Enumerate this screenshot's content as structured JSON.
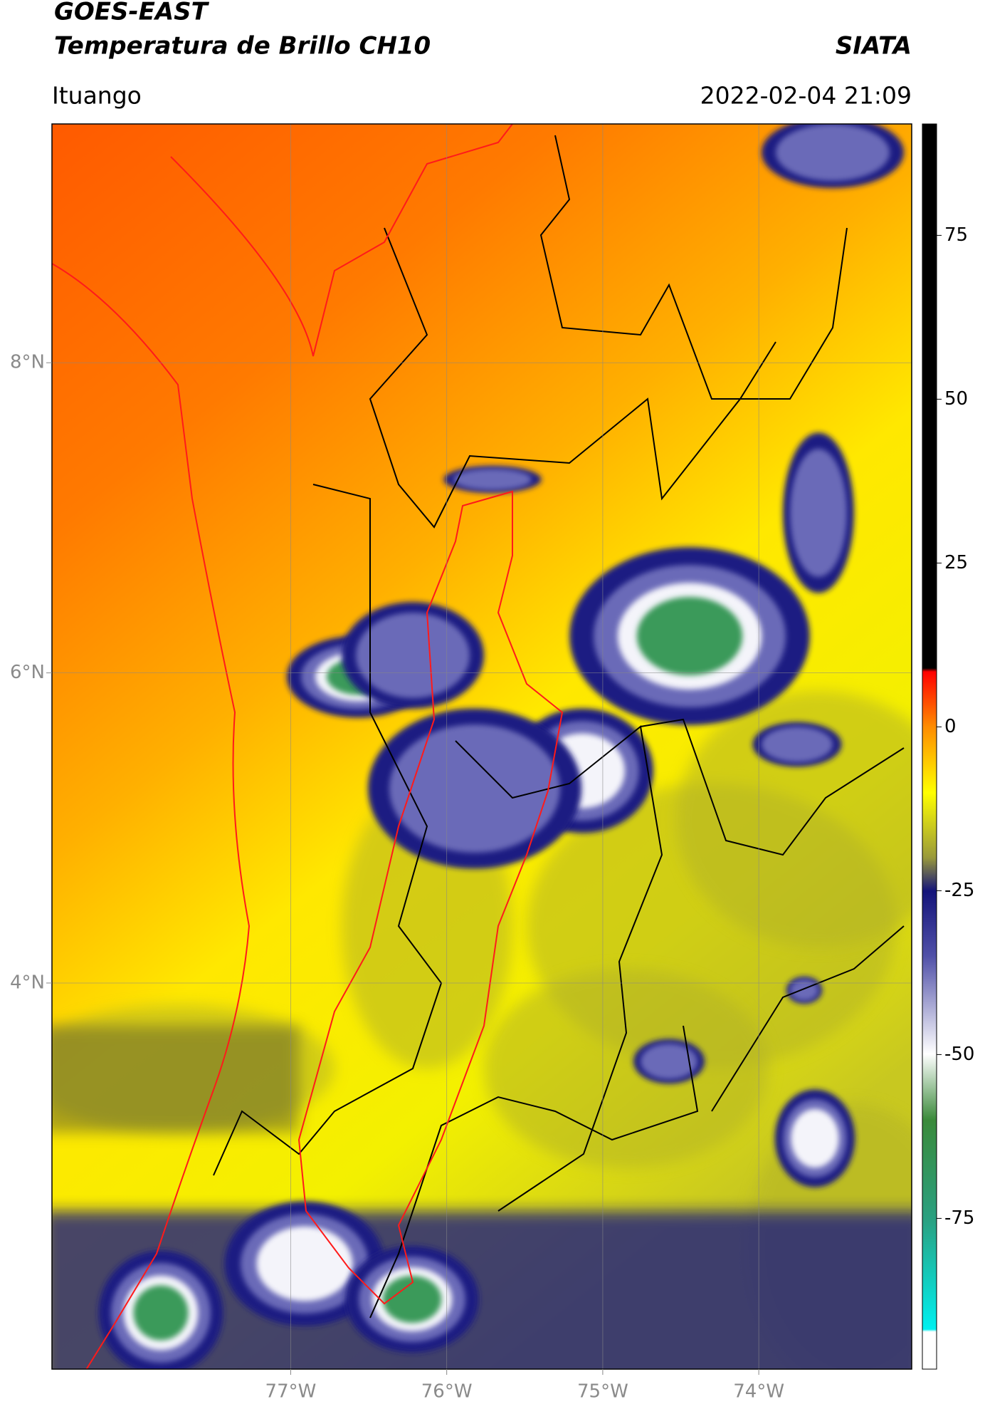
{
  "header": {
    "title": "GOES-EAST",
    "subtitle": "Temperatura de Brillo CH10",
    "source": "SIATA",
    "location": "Ituango",
    "datetime": "2022-02-04 21:09"
  },
  "map": {
    "xlim": [
      -78.53,
      -73.02
    ],
    "ylim": [
      1.51,
      9.54
    ],
    "xticks": [
      {
        "value": -77,
        "label": "77°W"
      },
      {
        "value": -76,
        "label": "76°W"
      },
      {
        "value": -75,
        "label": "75°W"
      },
      {
        "value": -74,
        "label": "74°W"
      }
    ],
    "yticks": [
      {
        "value": 8,
        "label": "8°N"
      },
      {
        "value": 6,
        "label": "6°N"
      },
      {
        "value": 4,
        "label": "4°N"
      }
    ],
    "grid": true
  },
  "colorbar": {
    "clim": [
      -98,
      92
    ],
    "ticks": [
      75,
      50,
      25,
      0,
      -25,
      -50,
      -75
    ]
  }
}
